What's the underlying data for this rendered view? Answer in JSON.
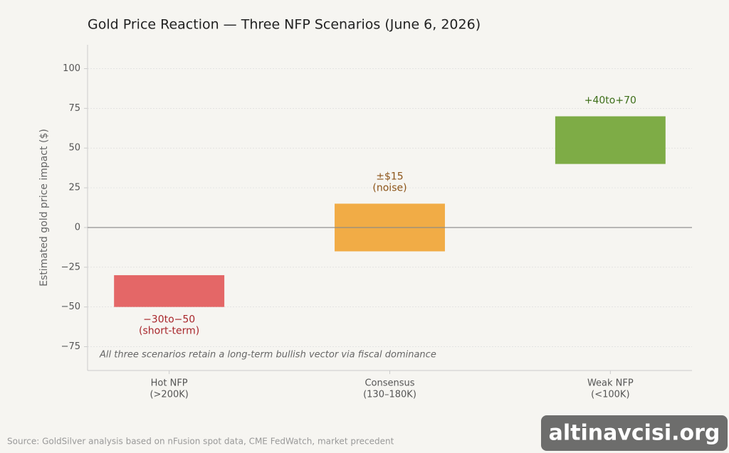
{
  "chart_data": {
    "type": "floating-bar",
    "title": "Gold Price Reaction — Three NFP Scenarios (June 6, 2026)",
    "y_label": "Estimated gold price impact ($)",
    "categories": [
      [
        "Hot NFP",
        "(>200K)"
      ],
      [
        "Consensus",
        "(130–180K)"
      ],
      [
        "Weak NFP",
        "(<100K)"
      ]
    ],
    "low": [
      -50,
      -15,
      40
    ],
    "high": [
      -30,
      15,
      70
    ],
    "colors": [
      "#e35f5f",
      "#f0a83c",
      "#77a83c"
    ],
    "label_colors": [
      "#a8262b",
      "#8c5418",
      "#3d6e19"
    ],
    "value_labels": [
      [
        "−30to−50",
        "(short-term)"
      ],
      [
        "±$15",
        "(noise)"
      ],
      [
        "+40to+70"
      ]
    ],
    "ylim": [
      -90,
      115
    ],
    "yticks": [
      {
        "value": -75,
        "label": "−75"
      },
      {
        "value": -50,
        "label": "−50"
      },
      {
        "value": -25,
        "label": "−25"
      },
      0,
      25,
      50,
      75,
      100
    ],
    "reference_line": 0,
    "grid": true,
    "annotation": "All three scenarios retain a long-term bullish vector via fiscal dominance",
    "source": "Source: GoldSilver analysis based on nFusion spot data, CME FedWatch, market precedent",
    "watermark": "altinavcisi.org"
  }
}
